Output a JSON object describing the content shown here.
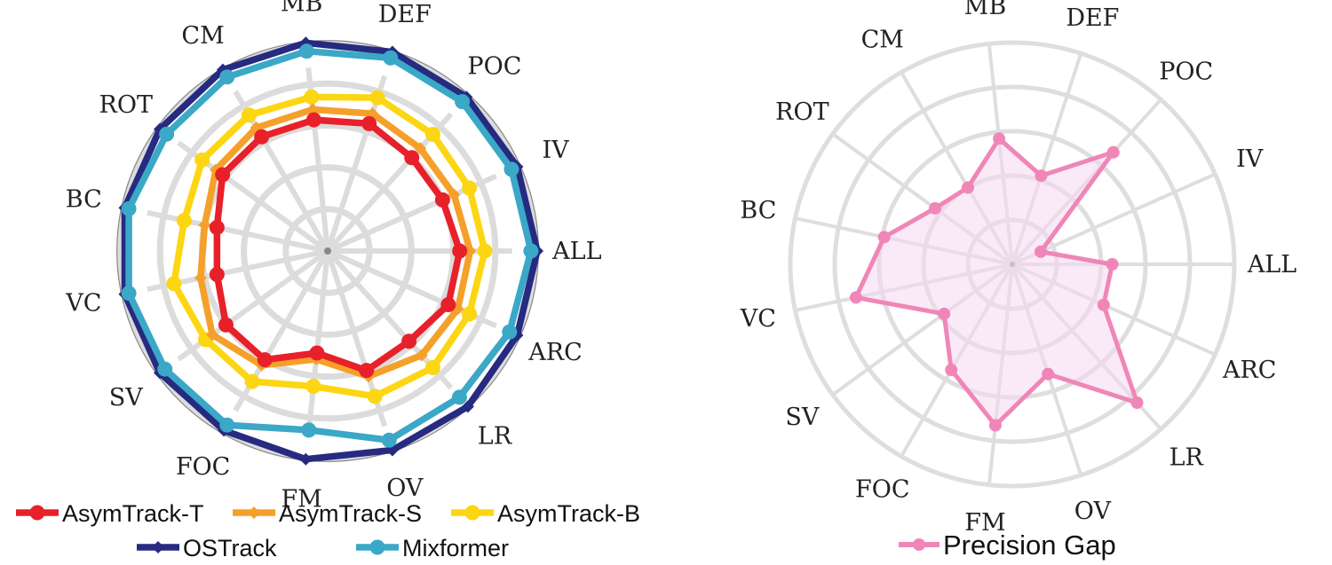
{
  "chart_data": [
    {
      "type": "radar",
      "title": "",
      "categories": [
        "ALL",
        "IV",
        "POC",
        "DEF",
        "MB",
        "CM",
        "ROT",
        "BC",
        "VC",
        "SV",
        "FOC",
        "FM",
        "OV",
        "LR",
        "ARC"
      ],
      "rlim": [
        0,
        1
      ],
      "grid": true,
      "legend_position": "bottom",
      "legend_layout": [
        [
          "AsymTrack-T",
          "AsymTrack-S",
          "AsymTrack-B"
        ],
        [
          "OSTrack",
          "Mixformer"
        ]
      ],
      "colors": {
        "AsymTrack-T": "#e8202a",
        "AsymTrack-S": "#f5a02a",
        "AsymTrack-B": "#fcd612",
        "OSTrack": "#262a80",
        "Mixformer": "#3aa8c6"
      },
      "series": [
        {
          "name": "OSTrack",
          "marker": "diamond",
          "values": [
            1.0,
            0.99,
            0.99,
            1.0,
            1.0,
            1.0,
            0.99,
            0.99,
            0.99,
            0.99,
            0.99,
            1.0,
            1.0,
            1.0,
            0.99
          ]
        },
        {
          "name": "Mixformer",
          "marker": "circle",
          "values": [
            0.97,
            0.96,
            0.96,
            0.97,
            0.96,
            0.96,
            0.95,
            0.97,
            0.97,
            0.96,
            0.96,
            0.86,
            0.95,
            0.94,
            0.95
          ]
        },
        {
          "name": "AsymTrack-B",
          "marker": "circle",
          "values": [
            0.75,
            0.74,
            0.75,
            0.77,
            0.74,
            0.75,
            0.74,
            0.7,
            0.75,
            0.72,
            0.72,
            0.65,
            0.73,
            0.75,
            0.74
          ]
        },
        {
          "name": "AsymTrack-S",
          "marker": "diamond",
          "values": [
            0.68,
            0.66,
            0.66,
            0.69,
            0.68,
            0.68,
            0.66,
            0.6,
            0.62,
            0.68,
            0.63,
            0.52,
            0.63,
            0.67,
            0.68
          ]
        },
        {
          "name": "AsymTrack-T",
          "marker": "circle",
          "values": [
            0.63,
            0.6,
            0.6,
            0.64,
            0.63,
            0.63,
            0.62,
            0.54,
            0.54,
            0.6,
            0.6,
            0.49,
            0.6,
            0.58,
            0.63
          ]
        }
      ]
    },
    {
      "type": "radar",
      "title": "",
      "categories": [
        "ALL",
        "IV",
        "POC",
        "DEF",
        "MB",
        "CM",
        "ROT",
        "BC",
        "VC",
        "SV",
        "FOC",
        "FM",
        "OV",
        "LR",
        "ARC"
      ],
      "rlim": [
        0,
        1
      ],
      "grid": true,
      "legend_position": "bottom",
      "colors": {
        "Precision Gap": "#f086b8",
        "fill": "#f5d8f2"
      },
      "series": [
        {
          "name": "Precision Gap",
          "marker": "circle",
          "values": [
            0.45,
            0.14,
            0.68,
            0.42,
            0.57,
            0.4,
            0.43,
            0.59,
            0.72,
            0.38,
            0.55,
            0.73,
            0.52,
            0.84,
            0.45
          ]
        }
      ]
    }
  ]
}
